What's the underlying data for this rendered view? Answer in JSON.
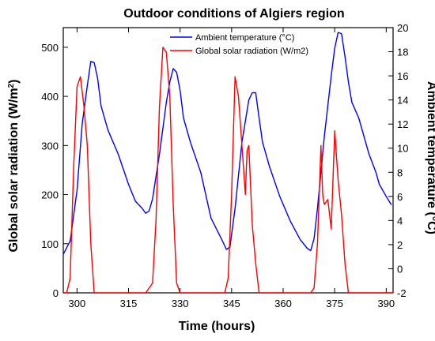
{
  "chart_data": {
    "type": "line",
    "title": "Outdoor conditions of Algiers region",
    "xlabel": "Time (hours)",
    "ylabel_left": "Global solar radiation (W/m²)",
    "ylabel_left_main": "Global solar radiation (W/m",
    "ylabel_left_sup": "2",
    "ylabel_left_close": ")",
    "ylabel_right": "Ambient temperature (°C)",
    "xlim": [
      296,
      392
    ],
    "ylim_left": [
      0,
      540
    ],
    "ylim_right": [
      -2,
      20
    ],
    "x_ticks": [
      300,
      315,
      330,
      345,
      360,
      375,
      390
    ],
    "y_left_ticks": [
      0,
      100,
      200,
      300,
      400,
      500
    ],
    "y_right_ticks": [
      -2,
      0,
      2,
      4,
      6,
      8,
      10,
      12,
      14,
      16,
      18,
      20
    ],
    "grid": false,
    "legend_position": "top-center",
    "series": [
      {
        "name": "Ambient temperature (°C)",
        "axis": "right",
        "color": "#0000ff",
        "x": [
          296,
          298,
          300,
          301.5,
          303,
          304,
          305,
          306,
          307,
          309,
          312,
          315,
          317,
          319,
          320,
          321,
          322,
          324,
          326,
          327,
          328,
          329,
          330,
          331,
          333,
          336,
          339,
          342,
          343.5,
          344.5,
          346,
          348,
          350,
          351,
          352,
          353,
          354,
          356,
          359,
          362,
          365,
          367,
          368,
          369,
          370,
          372,
          374,
          375,
          376,
          377,
          378,
          379,
          380,
          382,
          385,
          387,
          388,
          390,
          391.5
        ],
        "y": [
          1.2,
          2.3,
          6.5,
          12,
          15.2,
          17.2,
          17.1,
          15.8,
          13.5,
          11.5,
          9.5,
          7,
          5.6,
          5,
          4.6,
          4.8,
          5.8,
          9.5,
          13.8,
          15.5,
          16.6,
          16.3,
          14.8,
          12.5,
          10.5,
          8,
          4.2,
          2.5,
          1.6,
          1.8,
          5,
          10.5,
          14,
          14.6,
          14.6,
          12.5,
          10.5,
          8.5,
          6,
          4,
          2.4,
          1.7,
          1.5,
          2.5,
          5,
          11,
          16,
          18.3,
          19.6,
          19.5,
          17.6,
          15.5,
          13.8,
          12.5,
          9.5,
          8,
          7,
          6,
          5.3
        ]
      },
      {
        "name": "Global solar radiation  (W/m2)",
        "axis": "left",
        "color": "#ff0000",
        "x": [
          296,
          297,
          298,
          299,
          300,
          301,
          302,
          303,
          304,
          305,
          306,
          307,
          318,
          320,
          322,
          323,
          324,
          325,
          326,
          327,
          328,
          329,
          330,
          341,
          343,
          344,
          345,
          346,
          347,
          348,
          349,
          349.5,
          350,
          351,
          352,
          353,
          354,
          355,
          366,
          368,
          369,
          370,
          371,
          371.5,
          372,
          373,
          374,
          375,
          376,
          377,
          378,
          379,
          380,
          392
        ],
        "y": [
          0,
          0,
          30,
          250,
          420,
          440,
          380,
          300,
          100,
          0,
          0,
          0,
          0,
          0,
          20,
          150,
          380,
          500,
          490,
          400,
          180,
          20,
          0,
          0,
          0,
          30,
          200,
          440,
          400,
          300,
          200,
          290,
          300,
          140,
          60,
          0,
          0,
          0,
          0,
          0,
          10,
          100,
          300,
          200,
          180,
          190,
          130,
          330,
          230,
          160,
          60,
          0,
          0,
          0
        ]
      }
    ]
  }
}
